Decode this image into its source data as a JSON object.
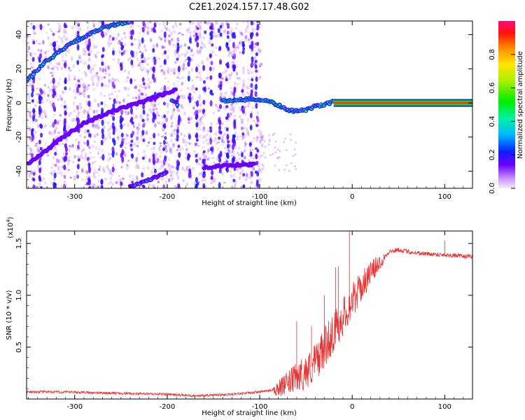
{
  "title": "C2E1.2024.157.17.48.G02",
  "colors": {
    "snr_line": "#e83030",
    "ridge": "#22d4c8",
    "trace_core": "#ff2a2a"
  },
  "chart_data": [
    {
      "type": "heatmap",
      "xlabel": "Height of straight line (km)",
      "ylabel": "Frequency (Hz)",
      "xlim": [
        -352,
        130
      ],
      "ylim": [
        -50,
        48
      ],
      "xticks": [
        -300,
        -200,
        -100,
        0,
        100
      ],
      "xtick_labels": [
        "-300",
        "-200",
        "-100",
        "0",
        "100"
      ],
      "yticks": [
        -40,
        -20,
        0,
        20,
        40
      ],
      "ytick_labels": [
        "-40",
        "-20",
        "0",
        "20",
        "40"
      ],
      "colorbar": {
        "label": "Normalized spectral amplitude",
        "range": [
          0,
          1
        ],
        "ticks": [
          0.0,
          0.2,
          0.4,
          0.6,
          0.8
        ],
        "tick_labels": [
          "0.0",
          "0.2",
          "0.4",
          "0.6",
          "0.8"
        ]
      },
      "ridges": [
        {
          "x": [
            -352,
            -330,
            -300,
            -270,
            -240
          ],
          "y": [
            13,
            25,
            36,
            44,
            48
          ],
          "amp": 0.45
        },
        {
          "x": [
            -350,
            -320,
            -290,
            -260,
            -230,
            -205,
            -190
          ],
          "y": [
            -36,
            -23,
            -12,
            -5,
            0,
            5,
            8
          ],
          "amp": 0.2
        },
        {
          "x": [
            -240,
            -225,
            -210,
            -200
          ],
          "y": [
            -49,
            -46,
            -43,
            -41
          ],
          "amp": 0.3
        },
        {
          "x": [
            -160,
            -140,
            -120,
            -105
          ],
          "y": [
            -38,
            -37,
            -36,
            -36
          ],
          "amp": 0.25
        },
        {
          "x": [
            -195,
            -188
          ],
          "y": [
            2,
            -1
          ],
          "amp": 0.35
        },
        {
          "x": [
            -140,
            -120,
            -100,
            -85,
            -70,
            -60,
            -50,
            -40,
            -30,
            -20
          ],
          "y": [
            1,
            2,
            2,
            0,
            -4,
            -5,
            -4,
            -2,
            -1,
            1
          ],
          "amp": 0.5
        },
        {
          "x": [
            -20,
            0,
            50,
            100,
            130
          ],
          "y": [
            0,
            0,
            0,
            0,
            0
          ],
          "amp": 1.0
        }
      ]
    },
    {
      "type": "line",
      "xlabel": "Height of straight line (km)",
      "ylabel": "SNR (10 * v/v)",
      "y_multiplier": "(x10",
      "y_multiplier_exp": "4",
      "y_multiplier_close": ")",
      "xlim": [
        -352,
        130
      ],
      "ylim": [
        0.0,
        1.62
      ],
      "xticks": [
        -300,
        -200,
        -100,
        0,
        100
      ],
      "xtick_labels": [
        "-300",
        "-200",
        "-100",
        "0",
        "100"
      ],
      "yticks": [
        0.5,
        1.0,
        1.5
      ],
      "ytick_labels": [
        "0.5",
        "1.0",
        "1.5"
      ],
      "series": [
        {
          "x": [
            -352,
            -300,
            -250,
            -200,
            -170,
            -140,
            -110,
            -90,
            -75,
            -65,
            -58,
            -52,
            -45,
            -38,
            -30,
            -22,
            -15,
            -8,
            0,
            10,
            20,
            30,
            40,
            50,
            60,
            80,
            100,
            115,
            130
          ],
          "y": [
            0.07,
            0.065,
            0.055,
            0.045,
            0.03,
            0.04,
            0.06,
            0.08,
            0.12,
            0.18,
            0.22,
            0.25,
            0.3,
            0.38,
            0.5,
            0.62,
            0.72,
            0.82,
            0.95,
            1.08,
            1.22,
            1.32,
            1.42,
            1.44,
            1.42,
            1.4,
            1.39,
            1.38,
            1.37
          ]
        }
      ],
      "spikes": [
        {
          "x": -60,
          "y": 0.75
        },
        {
          "x": -44,
          "y": 0.7
        },
        {
          "x": -30,
          "y": 1.0
        },
        {
          "x": -18,
          "y": 1.27
        },
        {
          "x": -15,
          "y": 1.28
        },
        {
          "x": -3,
          "y": 1.62
        },
        {
          "x": 100,
          "y": 1.53
        }
      ]
    }
  ]
}
